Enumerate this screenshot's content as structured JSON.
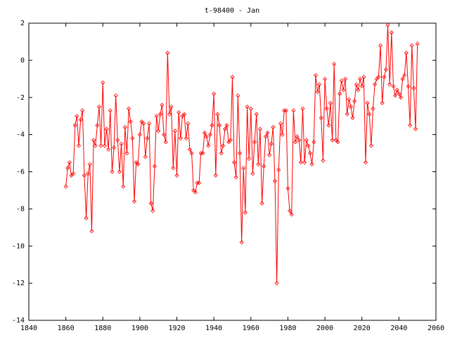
{
  "chart_data": {
    "type": "line",
    "title": "t-98400 - Jan",
    "xlim": [
      1840,
      2060
    ],
    "ylim": [
      -14,
      2
    ],
    "xticks": [
      1840,
      1860,
      1880,
      1900,
      1920,
      1940,
      1960,
      1980,
      2000,
      2020,
      2040,
      2060
    ],
    "yticks": [
      -14,
      -12,
      -10,
      -8,
      -6,
      -4,
      -2,
      0,
      2
    ],
    "series": [
      {
        "color": "#ff0000",
        "x": [
          1860,
          1861,
          1862,
          1863,
          1864,
          1865,
          1866,
          1867,
          1868,
          1869,
          1870,
          1871,
          1872,
          1873,
          1874,
          1875,
          1876,
          1877,
          1878,
          1879,
          1880,
          1881,
          1882,
          1883,
          1884,
          1885,
          1886,
          1887,
          1888,
          1889,
          1890,
          1891,
          1892,
          1893,
          1894,
          1895,
          1896,
          1897,
          1898,
          1899,
          1900,
          1901,
          1902,
          1903,
          1904,
          1905,
          1906,
          1907,
          1908,
          1909,
          1910,
          1911,
          1912,
          1913,
          1914,
          1915,
          1916,
          1917,
          1918,
          1919,
          1920,
          1921,
          1922,
          1923,
          1924,
          1925,
          1926,
          1927,
          1928,
          1929,
          1930,
          1931,
          1932,
          1933,
          1934,
          1935,
          1936,
          1937,
          1938,
          1939,
          1940,
          1941,
          1942,
          1943,
          1944,
          1945,
          1946,
          1947,
          1948,
          1949,
          1950,
          1951,
          1952,
          1953,
          1954,
          1955,
          1956,
          1957,
          1958,
          1959,
          1960,
          1961,
          1962,
          1963,
          1964,
          1965,
          1966,
          1967,
          1968,
          1969,
          1970,
          1971,
          1972,
          1973,
          1974,
          1975,
          1976,
          1977,
          1978,
          1979,
          1980,
          1981,
          1982,
          1983,
          1984,
          1985,
          1986,
          1987,
          1988,
          1989,
          1990,
          1991,
          1992,
          1993,
          1994,
          1995,
          1996,
          1997,
          1998,
          1999,
          2000,
          2001,
          2002,
          2003,
          2004,
          2005,
          2006,
          2007,
          2008,
          2009,
          2010,
          2011,
          2012,
          2013,
          2014,
          2015,
          2016,
          2017,
          2018,
          2019,
          2020,
          2021,
          2022,
          2023,
          2024,
          2025,
          2026,
          2027,
          2028,
          2029,
          2030,
          2031,
          2032,
          2033,
          2034,
          2035,
          2036,
          2037,
          2038,
          2039,
          2040,
          2041,
          2042,
          2043,
          2044,
          2045,
          2046,
          2047,
          2048,
          2049,
          2050
        ],
        "values": [
          -6.8,
          -5.8,
          -5.5,
          -6.2,
          -6.1,
          -3.5,
          -3.0,
          -4.6,
          -3.2,
          -2.7,
          -6.2,
          -8.5,
          -6.1,
          -5.6,
          -9.2,
          -4.3,
          -4.6,
          -3.5,
          -2.5,
          -4.6,
          -1.2,
          -4.6,
          -3.7,
          -4.8,
          -2.7,
          -6.0,
          -4.7,
          -1.9,
          -4.3,
          -6.0,
          -4.5,
          -6.8,
          -3.6,
          -5.0,
          -2.6,
          -3.3,
          -4.2,
          -7.6,
          -5.5,
          -5.6,
          -4.0,
          -3.3,
          -3.4,
          -5.2,
          -4.2,
          -3.4,
          -7.7,
          -8.1,
          -5.7,
          -3.0,
          -3.8,
          -2.9,
          -2.4,
          -4.0,
          -4.4,
          0.4,
          -2.9,
          -2.5,
          -5.8,
          -3.8,
          -6.2,
          -2.8,
          -4.2,
          -3.0,
          -2.9,
          -4.2,
          -3.4,
          -4.8,
          -5.0,
          -7.0,
          -7.1,
          -6.6,
          -6.6,
          -5.0,
          -5.0,
          -3.9,
          -4.1,
          -4.6,
          -4.0,
          -3.5,
          -1.8,
          -6.2,
          -2.9,
          -3.5,
          -5.0,
          -4.6,
          -3.7,
          -3.5,
          -4.4,
          -4.3,
          -0.9,
          -5.5,
          -6.3,
          -1.9,
          -5.0,
          -9.8,
          -5.8,
          -8.2,
          -2.5,
          -5.3,
          -2.6,
          -6.1,
          -4.4,
          -2.9,
          -5.6,
          -3.7,
          -7.7,
          -5.7,
          -4.1,
          -3.9,
          -5.1,
          -4.5,
          -3.6,
          -6.5,
          -12.0,
          -5.9,
          -3.4,
          -4.0,
          -2.7,
          -2.7,
          -6.9,
          -8.1,
          -8.3,
          -2.7,
          -4.4,
          -4.1,
          -4.3,
          -5.5,
          -2.6,
          -5.5,
          -4.3,
          -4.6,
          -5.0,
          -5.6,
          -4.4,
          -0.8,
          -1.7,
          -1.3,
          -3.1,
          -5.4,
          -1.0,
          -2.6,
          -3.5,
          -2.3,
          -4.3,
          -0.2,
          -4.3,
          -4.4,
          -1.8,
          -1.1,
          -1.6,
          -1.0,
          -2.9,
          -2.1,
          -2.5,
          -3.1,
          -2.2,
          -1.3,
          -1.6,
          -1.0,
          -1.4,
          -0.9,
          -5.5,
          -2.3,
          -2.9,
          -4.6,
          -2.6,
          -1.3,
          -1.0,
          -0.9,
          0.8,
          -2.3,
          -0.9,
          -0.5,
          1.9,
          -1.3,
          1.5,
          -1.4,
          -1.9,
          -1.6,
          -1.8,
          -2.0,
          -1.0,
          -0.8,
          0.4,
          -1.4,
          -3.5,
          0.8,
          -1.5,
          -3.7,
          0.9
        ]
      }
    ]
  }
}
